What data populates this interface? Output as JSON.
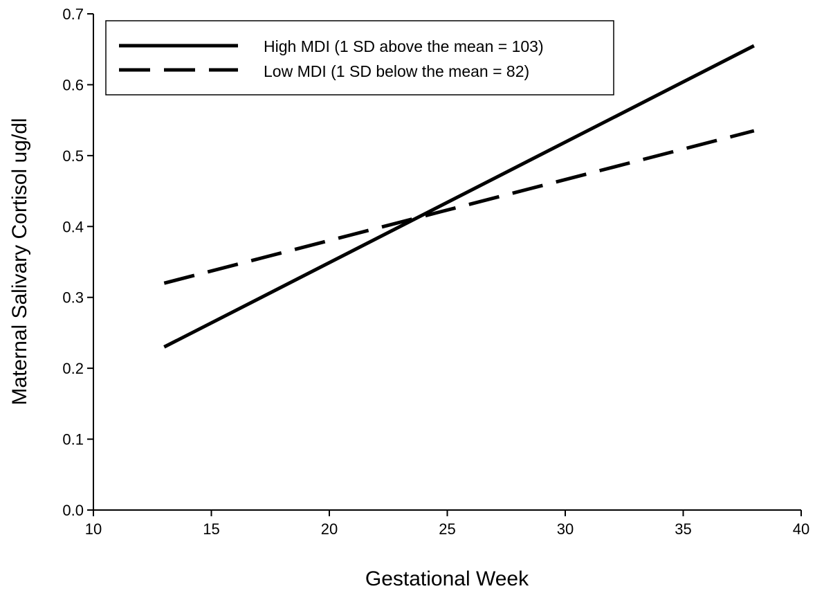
{
  "chart_data": {
    "type": "line",
    "title": "",
    "xlabel": "Gestational Week",
    "ylabel": "Maternal Salivary Cortisol ug/dl",
    "xlim": [
      10,
      40
    ],
    "ylim": [
      0.0,
      0.7
    ],
    "xticks": [
      10,
      15,
      20,
      25,
      30,
      35,
      40
    ],
    "yticks": [
      0.0,
      0.1,
      0.2,
      0.3,
      0.4,
      0.5,
      0.6,
      0.7
    ],
    "xtick_labels": [
      "10",
      "15",
      "20",
      "25",
      "30",
      "35",
      "40"
    ],
    "ytick_labels": [
      "0.0",
      "0.1",
      "0.2",
      "0.3",
      "0.4",
      "0.5",
      "0.6",
      "0.7"
    ],
    "grid": false,
    "legend_position": "top-left",
    "series": [
      {
        "name": "High MDI (1 SD above the mean = 103)",
        "style": "solid",
        "color": "#000000",
        "x": [
          13,
          38
        ],
        "y": [
          0.23,
          0.655
        ]
      },
      {
        "name": "Low MDI (1 SD below the mean = 82)",
        "style": "dashed",
        "color": "#000000",
        "x": [
          13,
          38
        ],
        "y": [
          0.32,
          0.535
        ]
      }
    ]
  }
}
